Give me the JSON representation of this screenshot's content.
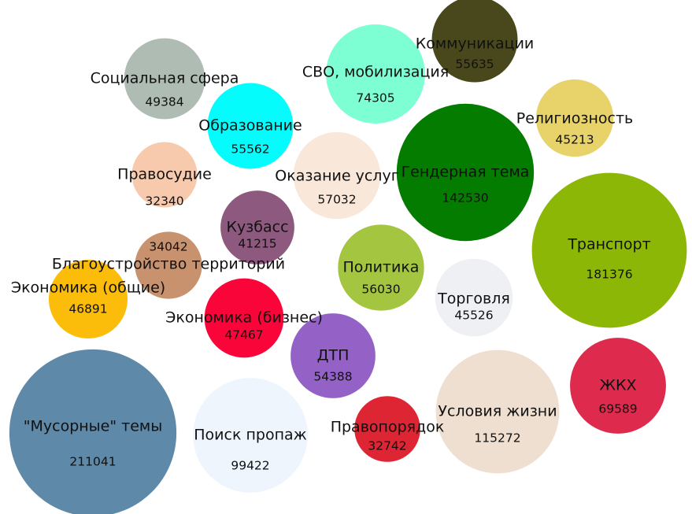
{
  "chart_data": {
    "type": "packed_bubble",
    "categories": [
      "\"Мусорные\" темы",
      "Поиск пропаж",
      "Правопорядок",
      "Условия жизни",
      "ЖКХ",
      "ДТП",
      "Экономика (бизнес)",
      "Экономика (общие)",
      "Благоустройство территорий",
      "Кузбасс",
      "Политика",
      "Торговля",
      "Транспорт",
      "Гендерная тема",
      "Религиозность",
      "Коммуникации",
      "СВО, мобилизация",
      "Оказание услуг",
      "Образование",
      "Социальная сфера",
      "Правосудие"
    ],
    "values": [
      211041,
      99422,
      32742,
      115272,
      69589,
      54388,
      47467,
      46891,
      34042,
      41215,
      56030,
      45526,
      181376,
      142530,
      45213,
      55635,
      74305,
      57032,
      55562,
      49384,
      32340
    ],
    "colors": [
      "#5f89a8",
      "#eef5fd",
      "#dd2533",
      "#eedfd0",
      "#de2a4c",
      "#9461c7",
      "#fa0539",
      "#fbbc0a",
      "#c8926f",
      "#8e597e",
      "#a4c540",
      "#eff0f3",
      "#8db707",
      "#047c00",
      "#e8d36a",
      "#49481c",
      "#7effd3",
      "#f9e8d9",
      "#05fcfc",
      "#aebcb3",
      "#f8caad"
    ]
  }
}
